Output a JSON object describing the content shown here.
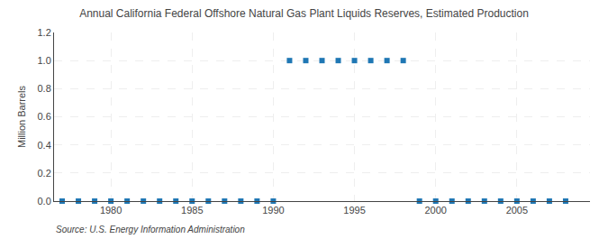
{
  "chart_data": {
    "type": "scatter",
    "title": "Annual California Federal Offshore Natural Gas Plant Liquids Reserves, Estimated Production",
    "ylabel": "Million Barrels",
    "source": "Source: U.S. Energy Information Administration",
    "x": [
      1977,
      1978,
      1979,
      1980,
      1981,
      1982,
      1983,
      1984,
      1985,
      1986,
      1987,
      1988,
      1989,
      1990,
      1991,
      1992,
      1993,
      1994,
      1995,
      1996,
      1997,
      1998,
      1999,
      2000,
      2001,
      2002,
      2003,
      2004,
      2005,
      2006,
      2007,
      2008
    ],
    "values": [
      0.0,
      0.0,
      0.0,
      0.0,
      0.0,
      0.0,
      0.0,
      0.0,
      0.0,
      0.0,
      0.0,
      0.0,
      0.0,
      0.0,
      1.0,
      1.0,
      1.0,
      1.0,
      1.0,
      1.0,
      1.0,
      1.0,
      0.0,
      0.0,
      0.0,
      0.0,
      0.0,
      0.0,
      0.0,
      0.0,
      0.0,
      0.0
    ],
    "xlim": [
      1976.5,
      2009.5
    ],
    "xticks": [
      1980,
      1985,
      1990,
      1995,
      2000,
      2005
    ],
    "ylim": [
      0.0,
      1.2
    ],
    "yticks": [
      {
        "value": 0.0,
        "label": "0.0"
      },
      0.2,
      0.4,
      0.6,
      0.8,
      {
        "value": 1.0,
        "label": "1.0"
      },
      1.2
    ],
    "grid": true,
    "marker": "square"
  }
}
